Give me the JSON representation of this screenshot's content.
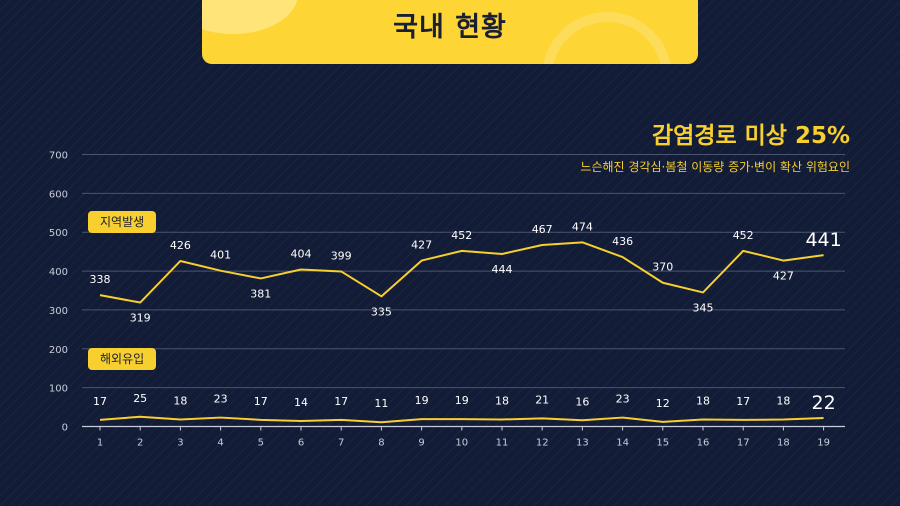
{
  "banner": {
    "title": "국내 현황"
  },
  "headline": "감염경로 미상 25%",
  "subheadline": "느슨해진 경각심·봄철 이동량 증가·변이 확산 위험요인",
  "chart_data": {
    "type": "line",
    "categories": [
      "1",
      "2",
      "3",
      "4",
      "5",
      "6",
      "7",
      "8",
      "9",
      "10",
      "11",
      "12",
      "13",
      "14",
      "15",
      "16",
      "17",
      "18",
      "19"
    ],
    "ylim": [
      0,
      700
    ],
    "yticks": [
      "0",
      "100",
      "200",
      "300",
      "400",
      "500",
      "600",
      "700"
    ],
    "grid": true,
    "series": [
      {
        "name": "지역발생",
        "values": [
          338,
          319,
          426,
          401,
          381,
          404,
          399,
          335,
          427,
          452,
          444,
          467,
          474,
          436,
          370,
          345,
          452,
          427,
          441
        ]
      },
      {
        "name": "해외유입",
        "values": [
          17,
          25,
          18,
          23,
          17,
          14,
          17,
          11,
          19,
          19,
          18,
          21,
          16,
          23,
          12,
          18,
          17,
          18,
          22
        ]
      }
    ],
    "colors": {
      "line": "#f7cf2e",
      "label": "#ffffff",
      "axis": "#c8ccd8",
      "grid": "#4a5370"
    }
  }
}
